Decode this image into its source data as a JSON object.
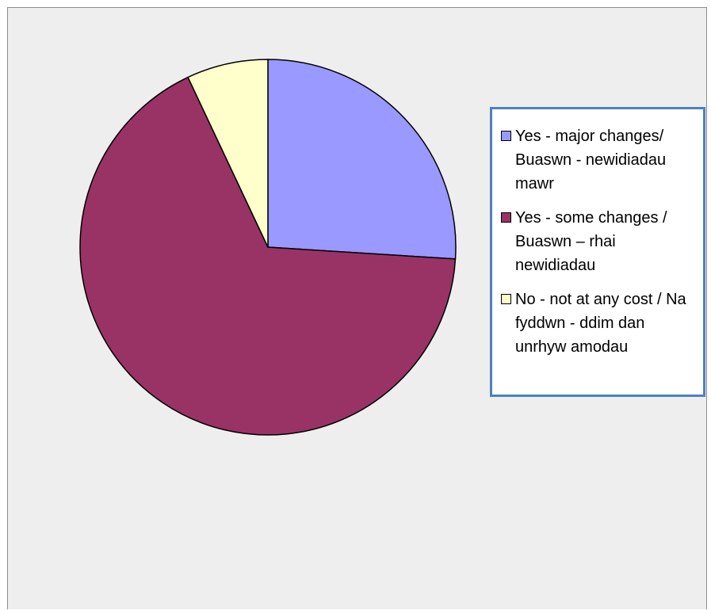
{
  "chart_data": {
    "type": "pie",
    "title": "",
    "series": [
      {
        "values": [
          26,
          67,
          7
        ]
      }
    ],
    "categories": [
      "Yes - major changes/ Buaswn - newidiadau mawr",
      "Yes - some changes / Buaswn – rhai newidiadau",
      "No - not at any cost / Na fyddwn - ddim dan unrhyw amodau"
    ],
    "colors": [
      "#9999ff",
      "#993366",
      "#ffffcc"
    ],
    "start_angle": "12 o'clock, clockwise",
    "legend_position": "right"
  },
  "legend": {
    "items": [
      {
        "label": "Yes - major changes/ Buaswn - newidiadau mawr",
        "color": "#9999ff"
      },
      {
        "label": "Yes - some changes / Buaswn – rhai newidiadau",
        "color": "#993366"
      },
      {
        "label": "No - not at any cost / Na fyddwn - ddim dan unrhyw amodau",
        "color": "#ffffcc"
      }
    ],
    "border_color": "#4f81bd"
  }
}
